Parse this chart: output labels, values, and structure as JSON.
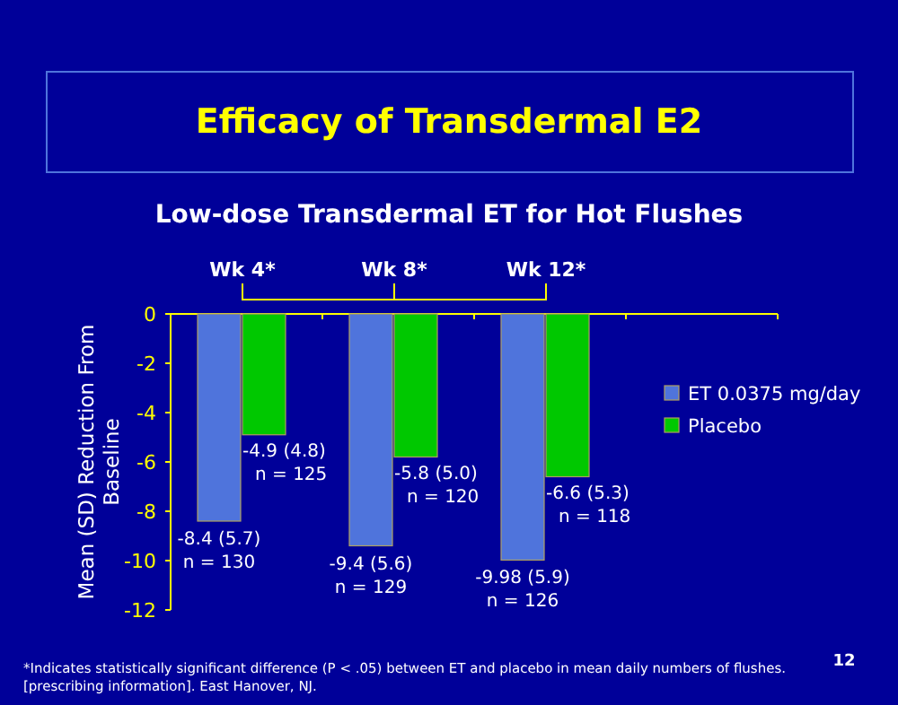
{
  "chart_data": {
    "type": "bar",
    "title": "Efficacy of Transdermal E2",
    "subtitle": "Low-dose Transdermal ET for Hot Flushes",
    "ylabel": "Mean (SD) Reduction From Baseline",
    "categories": [
      "Wk 4*",
      "Wk 8*",
      "Wk 12*",
      null
    ],
    "series": [
      {
        "name": "ET 0.0375 mg/day",
        "color": "#4f74dc",
        "values": [
          -8.4,
          -9.4,
          -9.98,
          null
        ],
        "value_labels": [
          "-8.4 (5.7)\nn = 130",
          "-9.4 (5.6)\nn = 129",
          "-9.98 (5.9)\nn = 126",
          null
        ]
      },
      {
        "name": "Placebo",
        "color": "#00c800",
        "values": [
          -4.9,
          -5.8,
          -6.6,
          null
        ],
        "value_labels": [
          "-4.9 (4.8)\nn = 125",
          "-5.8 (5.0)\nn = 120",
          "-6.6 (5.3)\nn = 118",
          null
        ]
      }
    ],
    "ylim": [
      -12,
      0
    ],
    "yticks": [
      0,
      -2,
      -4,
      -6,
      -8,
      -10,
      -12
    ],
    "grid": false,
    "legend": "right",
    "annotations": [
      "*Indicates statistically significant difference (P < .05) between ET  and placebo in mean daily numbers of flushes.",
      "[prescribing information]. East Hanover, NJ.",
      "12"
    ]
  }
}
